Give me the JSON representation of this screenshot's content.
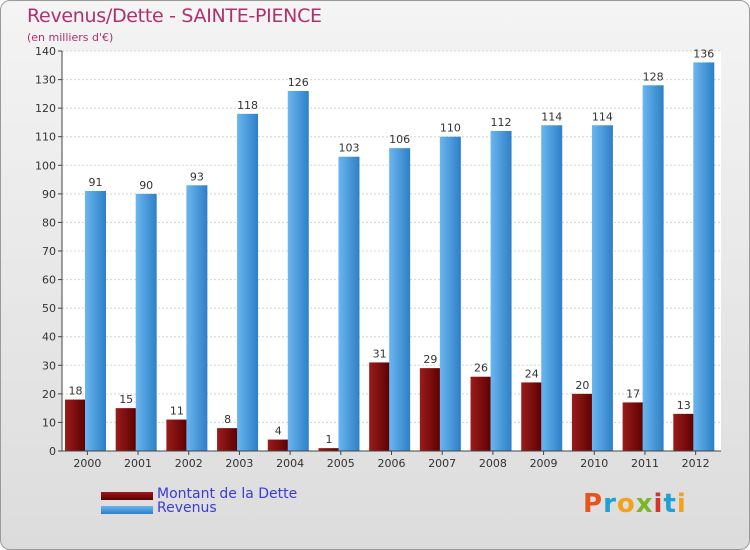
{
  "chart_data": {
    "type": "bar",
    "title": "Revenus/Dette - SAINTE-PIENCE",
    "subtitle": "(en milliers d'€)",
    "categories": [
      "2000",
      "2001",
      "2002",
      "2003",
      "2004",
      "2005",
      "2006",
      "2007",
      "2008",
      "2009",
      "2010",
      "2011",
      "2012"
    ],
    "series": [
      {
        "name": "Montant de la Dette",
        "color": "#7a0a0a",
        "values": [
          18,
          15,
          11,
          8,
          4,
          1,
          31,
          29,
          26,
          24,
          20,
          17,
          13
        ]
      },
      {
        "name": "Revenus",
        "color": "#3f94d8",
        "values": [
          91,
          90,
          93,
          118,
          126,
          103,
          106,
          110,
          112,
          114,
          114,
          128,
          136
        ]
      }
    ],
    "ylim": [
      0,
      140
    ],
    "yticks": [
      0,
      10,
      20,
      30,
      40,
      50,
      60,
      70,
      80,
      90,
      100,
      110,
      120,
      130,
      140
    ],
    "grid": true,
    "legend_position": "bottom-left"
  },
  "legend": {
    "debt_label": "Montant de la Dette",
    "revenue_label": "Revenus"
  },
  "branding": {
    "letters": [
      "P",
      "r",
      "o",
      "x",
      "i",
      "t",
      "i"
    ],
    "colors": [
      "#e8541e",
      "#1f9fd4",
      "#f2a21a",
      "#7bb52a",
      "#d2362a",
      "#1f9fd4",
      "#f2a21a"
    ]
  }
}
